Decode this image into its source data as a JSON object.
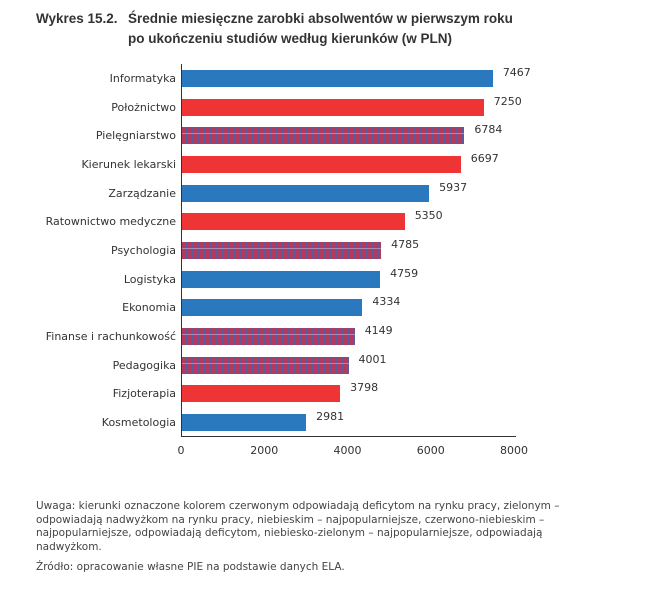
{
  "header": {
    "number": "Wykres 15.2.",
    "title_line1": "Średnie miesięczne zarobki absolwentów w pierwszym roku",
    "title_line2": "po ukończeniu studiów według kierunków (w PLN)"
  },
  "colors": {
    "blue": "#2a78bd",
    "red": "#ee3434",
    "striped_red": "#b23a5e",
    "striped_blue": "#5d5a9c"
  },
  "chart_data": {
    "type": "bar",
    "orientation": "horizontal",
    "title": "Średnie miesięczne zarobki absolwentów w pierwszym roku po ukończeniu studiów według kierunków (w PLN)",
    "xlabel": "",
    "ylabel": "",
    "xlim": [
      0,
      8000
    ],
    "xticks": [
      "0",
      "2000",
      "4000",
      "6000",
      "8000"
    ],
    "grid": false,
    "legend": "none",
    "categories": [
      "Informatyka",
      "Położnictwo",
      "Pielęgniarstwo",
      "Kierunek lekarski",
      "Zarządzanie",
      "Ratownictwo medyczne",
      "Psychologia",
      "Logistyka",
      "Ekonomia",
      "Finanse i rachunkowość",
      "Pedagogika",
      "Fizjoterapia",
      "Kosmetologia"
    ],
    "values": [
      7467,
      7250,
      6784,
      6697,
      5937,
      5350,
      4785,
      4759,
      4334,
      4149,
      4001,
      3798,
      2981
    ],
    "bar_styles": [
      "blue",
      "red",
      "striped",
      "red",
      "blue",
      "red",
      "striped",
      "blue",
      "blue",
      "striped",
      "striped",
      "red",
      "blue"
    ],
    "value_labels": [
      "7467",
      "7250",
      "6784",
      "6697",
      "5937",
      "5350",
      "4785",
      "4759",
      "4334",
      "4149",
      "4001",
      "3798",
      "2981"
    ]
  },
  "footer": {
    "note": "Uwaga: kierunki oznaczone kolorem czerwonym odpowiadają deficytom na rynku pracy, zielonym – odpowiadają nadwyżkom na rynku pracy, niebieskim – najpopularniejsze, czerwono-niebieskim – najpopularniejsze, odpowiadają deficytom, niebiesko-zielonym – najpopularniejsze, odpowiadają nadwyżkom.",
    "source": "Źródło: opracowanie własne PIE na podstawie danych ELA."
  }
}
